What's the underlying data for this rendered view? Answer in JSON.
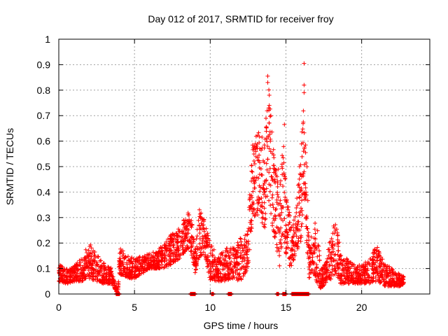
{
  "chart_data": {
    "type": "scatter",
    "title": "Day 012 of 2017, SRMTID for receiver froy",
    "xlabel": "GPS time / hours",
    "ylabel": "SRMTID / TECUs",
    "xlim": [
      0,
      24.5
    ],
    "ylim": [
      0,
      1
    ],
    "xticks": [
      0,
      5,
      10,
      15,
      20
    ],
    "xtick_labels": [
      "0",
      "5",
      "10",
      "15",
      "20"
    ],
    "yticks": [
      0,
      0.1,
      0.2,
      0.3,
      0.4,
      0.5,
      0.6,
      0.7,
      0.8,
      0.9,
      1
    ],
    "ytick_labels": [
      "0",
      "0.1",
      "0.2",
      "0.3",
      "0.4",
      "0.5",
      "0.6",
      "0.7",
      "0.8",
      "0.9",
      "1"
    ],
    "grid": true,
    "marker": "+",
    "color": "#ff0000",
    "series": [
      {
        "name": "SRMTID",
        "envelope": [
          [
            0.0,
            0.05,
            0.12
          ],
          [
            0.5,
            0.04,
            0.1
          ],
          [
            1.0,
            0.05,
            0.11
          ],
          [
            1.5,
            0.05,
            0.14
          ],
          [
            2.0,
            0.06,
            0.2
          ],
          [
            2.5,
            0.05,
            0.16
          ],
          [
            3.0,
            0.04,
            0.12
          ],
          [
            3.5,
            0.04,
            0.1
          ],
          [
            3.9,
            0.0,
            0.0
          ],
          [
            4.0,
            0.08,
            0.19
          ],
          [
            4.5,
            0.06,
            0.15
          ],
          [
            5.0,
            0.06,
            0.14
          ],
          [
            5.5,
            0.08,
            0.15
          ],
          [
            6.0,
            0.1,
            0.16
          ],
          [
            6.5,
            0.1,
            0.18
          ],
          [
            7.0,
            0.1,
            0.2
          ],
          [
            7.5,
            0.12,
            0.24
          ],
          [
            8.0,
            0.14,
            0.26
          ],
          [
            8.5,
            0.18,
            0.33
          ],
          [
            8.8,
            0.15,
            0.28
          ],
          [
            9.0,
            0.08,
            0.18
          ],
          [
            9.3,
            0.14,
            0.34
          ],
          [
            9.6,
            0.16,
            0.3
          ],
          [
            10.0,
            0.05,
            0.2
          ],
          [
            10.5,
            0.05,
            0.15
          ],
          [
            11.0,
            0.05,
            0.18
          ],
          [
            11.5,
            0.06,
            0.18
          ],
          [
            12.0,
            0.05,
            0.22
          ],
          [
            12.5,
            0.1,
            0.28
          ],
          [
            12.8,
            0.3,
            0.6
          ],
          [
            13.2,
            0.3,
            0.64
          ],
          [
            13.6,
            0.25,
            0.6
          ],
          [
            13.8,
            0.4,
            0.85
          ],
          [
            14.0,
            0.3,
            0.72
          ],
          [
            14.3,
            0.2,
            0.5
          ],
          [
            14.6,
            0.1,
            0.4
          ],
          [
            14.8,
            0.25,
            0.66
          ],
          [
            15.0,
            0.15,
            0.4
          ],
          [
            15.3,
            0.1,
            0.3
          ],
          [
            15.6,
            0.15,
            0.3
          ],
          [
            16.0,
            0.2,
            0.55
          ],
          [
            16.2,
            0.4,
            0.9
          ],
          [
            16.5,
            0.06,
            0.28
          ],
          [
            16.8,
            0.08,
            0.2
          ],
          [
            17.0,
            0.05,
            0.34
          ],
          [
            17.3,
            0.02,
            0.1
          ],
          [
            17.6,
            0.04,
            0.12
          ],
          [
            18.0,
            0.06,
            0.24
          ],
          [
            18.3,
            0.08,
            0.32
          ],
          [
            18.6,
            0.04,
            0.16
          ],
          [
            19.0,
            0.04,
            0.14
          ],
          [
            19.5,
            0.04,
            0.12
          ],
          [
            20.0,
            0.04,
            0.11
          ],
          [
            20.5,
            0.04,
            0.14
          ],
          [
            21.0,
            0.05,
            0.19
          ],
          [
            21.5,
            0.03,
            0.12
          ],
          [
            22.0,
            0.03,
            0.1
          ],
          [
            22.5,
            0.03,
            0.08
          ],
          [
            22.8,
            0.04,
            0.07
          ]
        ],
        "notable_points": [
          [
            13.8,
            0.855
          ],
          [
            13.8,
            0.83
          ],
          [
            13.9,
            0.74
          ],
          [
            14.0,
            0.7
          ],
          [
            14.5,
            0.49
          ],
          [
            14.9,
            0.665
          ],
          [
            16.2,
            0.905
          ],
          [
            16.2,
            0.82
          ],
          [
            16.2,
            0.79
          ],
          [
            16.3,
            0.585
          ],
          [
            16.3,
            0.555
          ],
          [
            15.9,
            0.5
          ],
          [
            16.2,
            0.48
          ]
        ]
      }
    ],
    "zero_runs": [
      [
        3.8,
        4.0
      ],
      [
        8.7,
        9.0
      ],
      [
        10.1,
        10.2
      ],
      [
        11.2,
        11.4
      ],
      [
        14.4,
        14.5
      ],
      [
        14.8,
        15.0
      ],
      [
        15.4,
        16.5
      ]
    ]
  }
}
